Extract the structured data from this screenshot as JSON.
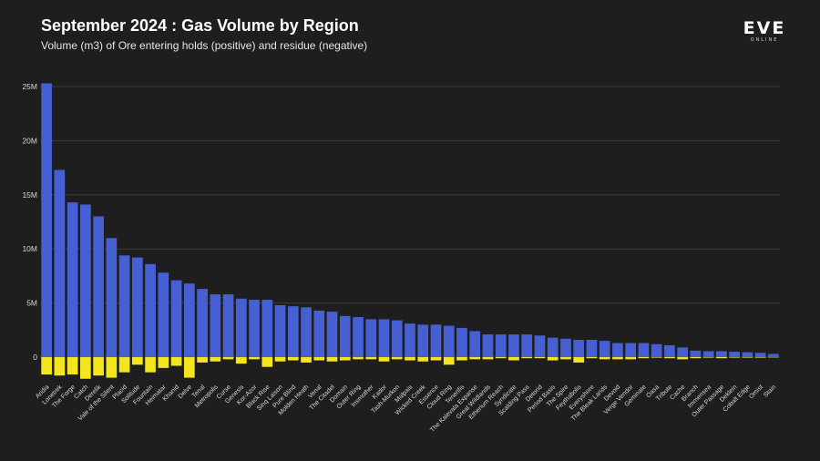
{
  "header": {
    "title": "September 2024 : Gas Volume by Region",
    "subtitle": "Volume (m3) of Ore entering holds (positive) and residue (negative)"
  },
  "logo": {
    "main": "EVE",
    "sub": "ONLINE"
  },
  "colors": {
    "background": "#1e1e1e",
    "positive": "#4660d4",
    "negative": "#f5e51e",
    "grid": "#3a3a3a"
  },
  "chart_data": {
    "type": "bar",
    "title": "September 2024 : Gas Volume by Region",
    "subtitle": "Volume (m3) of Ore entering holds (positive) and residue (negative)",
    "xlabel": "",
    "ylabel": "",
    "ylim": [
      -2000000,
      26000000
    ],
    "yticks": [
      0,
      5000000,
      10000000,
      15000000,
      20000000,
      25000000
    ],
    "ytick_labels": [
      "0",
      "5M",
      "10M",
      "15M",
      "20M",
      "25M"
    ],
    "grid": true,
    "legend": "none",
    "stacked": true,
    "categories": [
      "Aridia",
      "Lonetrek",
      "The Forge",
      "Catch",
      "Derelik",
      "Vale of the Silent",
      "Placid",
      "Solitude",
      "Fountain",
      "Heimatar",
      "Khanid",
      "Delve",
      "Tenal",
      "Metropolis",
      "Curse",
      "Genesis",
      "Kor-Azor",
      "Black Rise",
      "Sinq Laison",
      "Pure Blind",
      "Molden Heath",
      "Venal",
      "The Citadel",
      "Domain",
      "Outer Ring",
      "Insmother",
      "Kador",
      "Tash-Murkon",
      "Malpais",
      "Wicked Creek",
      "Essence",
      "Cloud Ring",
      "Tenerifis",
      "The Kalevala Expanse",
      "Great Wildlands",
      "Etherium Reach",
      "Syndicate",
      "Scalding Pass",
      "Detorid",
      "Period Basis",
      "The Spire",
      "Feythabolis",
      "Everyshore",
      "The Bleak Lands",
      "Devoid",
      "Verge Vendor",
      "Geminate",
      "Oasa",
      "Tribute",
      "Cache",
      "Branch",
      "Immensea",
      "Outer Passage",
      "Deklein",
      "Cobalt Edge",
      "Omist",
      "Stain"
    ],
    "series": [
      {
        "values": [
          25300000,
          17300000,
          14300000,
          14100000,
          13000000,
          11000000,
          9400000,
          9200000,
          8600000,
          7800000,
          7100000,
          6800000,
          6300000,
          5800000,
          5800000,
          5400000,
          5300000,
          5300000,
          4800000,
          4700000,
          4600000,
          4300000,
          4200000,
          3800000,
          3700000,
          3500000,
          3500000,
          3400000,
          3100000,
          3000000,
          3000000,
          2900000,
          2700000,
          2400000,
          2100000,
          2100000,
          2100000,
          2100000,
          2000000,
          1800000,
          1700000,
          1600000,
          1600000,
          1500000,
          1300000,
          1300000,
          1300000,
          1200000,
          1100000,
          900000,
          600000,
          550000,
          550000,
          500000,
          450000,
          400000,
          300000
        ]
      },
      {
        "values": [
          -1600000,
          -1700000,
          -1600000,
          -2000000,
          -1700000,
          -1900000,
          -1400000,
          -700000,
          -1400000,
          -1000000,
          -800000,
          -1900000,
          -500000,
          -400000,
          -200000,
          -600000,
          -200000,
          -900000,
          -400000,
          -300000,
          -500000,
          -300000,
          -400000,
          -300000,
          -200000,
          -200000,
          -400000,
          -200000,
          -300000,
          -400000,
          -300000,
          -700000,
          -300000,
          -200000,
          -200000,
          -100000,
          -300000,
          -100000,
          -100000,
          -300000,
          -200000,
          -500000,
          -100000,
          -200000,
          -200000,
          -200000,
          -100000,
          -50000,
          -100000,
          -200000,
          -100000,
          -50000,
          -100000,
          -50000,
          -50000,
          -50000,
          -30000
        ]
      }
    ]
  }
}
